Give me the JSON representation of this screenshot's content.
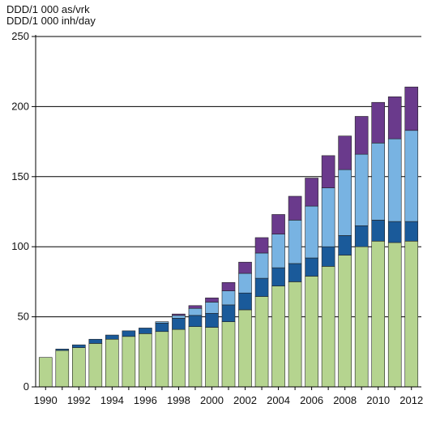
{
  "chart_data": {
    "type": "bar",
    "stacked": true,
    "ylabel_lines": [
      "DDD/1 000 as/vrk",
      "DDD/1 000 inh/day"
    ],
    "ylim": [
      0,
      250
    ],
    "yticks": [
      0,
      50,
      100,
      150,
      200,
      250
    ],
    "grid": "horizontal",
    "x": [
      1990,
      1991,
      1992,
      1993,
      1994,
      1995,
      1996,
      1997,
      1998,
      1999,
      2000,
      2001,
      2002,
      2003,
      2004,
      2005,
      2006,
      2007,
      2008,
      2009,
      2010,
      2011,
      2012
    ],
    "xtick_labels": [
      "1990",
      "1992",
      "1994",
      "1996",
      "1998",
      "2000",
      "2002",
      "2004",
      "2006",
      "2008",
      "2010",
      "2012"
    ],
    "series": [
      {
        "color": "#b5d48f",
        "values": [
          21,
          26,
          28,
          31,
          34,
          36,
          38,
          39.5,
          41,
          43,
          42.5,
          46.5,
          55,
          64.5,
          72,
          75,
          79,
          86,
          94,
          100,
          104,
          103,
          104
        ]
      },
      {
        "color": "#1a5a9a",
        "values": [
          0,
          1,
          2,
          3,
          3,
          4,
          4,
          6,
          8,
          8,
          10,
          12,
          12,
          13,
          13,
          13,
          13,
          14,
          14,
          15,
          15,
          15,
          14
        ]
      },
      {
        "color": "#78b3e2",
        "values": [
          0,
          0,
          0,
          0,
          0,
          0,
          0,
          1,
          2,
          5,
          8,
          10,
          14,
          18,
          24,
          31,
          37,
          42,
          47,
          51,
          55,
          59,
          65
        ]
      },
      {
        "color": "#6a3a8c",
        "values": [
          0,
          0,
          0,
          0,
          0,
          0,
          0,
          0,
          1,
          2,
          3,
          6,
          8,
          11,
          14,
          17,
          20,
          23,
          24,
          27,
          29,
          30,
          31
        ]
      }
    ]
  }
}
